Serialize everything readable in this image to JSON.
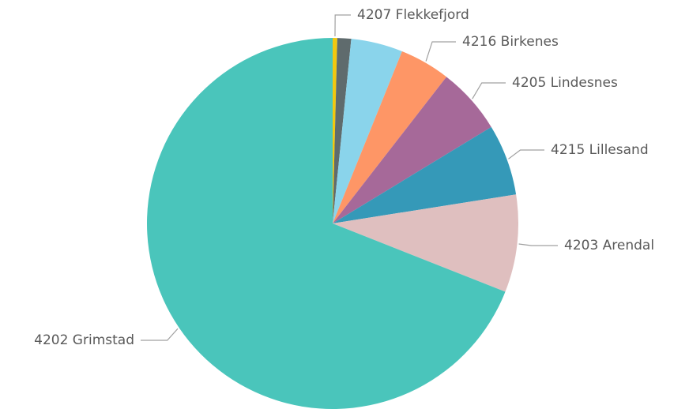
{
  "chart_data": {
    "type": "pie",
    "categories": [
      "4207 Flekkefjord",
      null,
      null,
      "4216 Birkenes",
      "4205 Lindesnes",
      "4215 Lillesand",
      "4203 Arendal",
      "4202 Grimstad"
    ],
    "values": [
      0.4,
      1.2,
      4.5,
      4.4,
      5.8,
      6.2,
      8.5,
      69.0
    ],
    "colors": [
      "#f2c80f",
      "#5f6b6d",
      "#8ad4eb",
      "#fe9666",
      "#a66999",
      "#3599b8",
      "#dfbfbf",
      "#4ac5bb"
    ]
  }
}
